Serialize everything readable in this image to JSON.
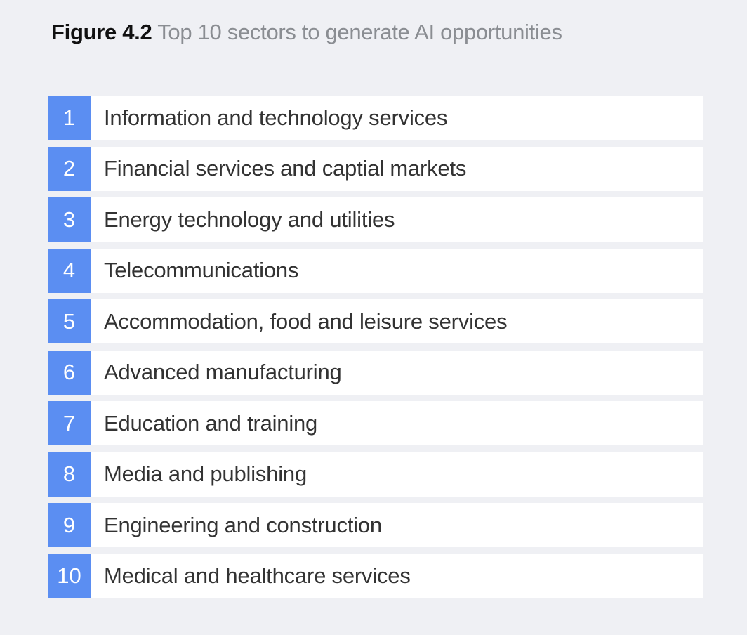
{
  "header": {
    "label": "Figure 4.2",
    "title": "Top 10 sectors to generate AI opportunities"
  },
  "colors": {
    "accent": "#5b8ef2",
    "background": "#eff0f4",
    "row_background": "#ffffff",
    "title_gray": "#8a8d92"
  },
  "chart_data": {
    "type": "table",
    "title": "Top 10 sectors to generate AI opportunities",
    "rows": [
      {
        "rank": "1",
        "sector": "Information and technology services"
      },
      {
        "rank": "2",
        "sector": "Financial services and captial markets"
      },
      {
        "rank": "3",
        "sector": "Energy technology and utilities"
      },
      {
        "rank": "4",
        "sector": "Telecommunications"
      },
      {
        "rank": "5",
        "sector": "Accommodation, food and leisure services"
      },
      {
        "rank": "6",
        "sector": "Advanced manufacturing"
      },
      {
        "rank": "7",
        "sector": "Education and training"
      },
      {
        "rank": "8",
        "sector": "Media and publishing"
      },
      {
        "rank": "9",
        "sector": "Engineering and construction"
      },
      {
        "rank": "10",
        "sector": "Medical and healthcare services"
      }
    ]
  }
}
